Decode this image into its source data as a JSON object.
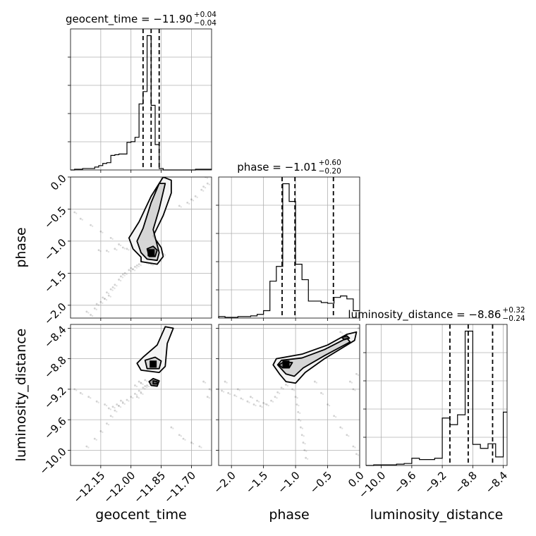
{
  "chart_data": {
    "type": "corner",
    "parameters": [
      {
        "name": "geocent_time",
        "label": "geocent_time",
        "title": {
          "main": "geocent_time = −11.90",
          "sup": "+0.04",
          "sub": "−0.04"
        },
        "range": [
          -12.3,
          -11.6
        ],
        "ticks": [
          -12.15,
          -12.0,
          -11.85,
          -11.7
        ],
        "tick_labels": [
          "−12.15",
          "−12.00",
          "−11.85",
          "−11.70"
        ],
        "quantiles": [
          -11.94,
          -11.9,
          -11.86
        ],
        "hist_bins": [
          -12.3,
          -12.28,
          -12.26,
          -12.24,
          -12.22,
          -12.2,
          -12.18,
          -12.16,
          -12.14,
          -12.12,
          -12.1,
          -12.08,
          -12.06,
          -12.04,
          -12.02,
          -12.0,
          -11.98,
          -11.96,
          -11.94,
          -11.92,
          -11.9,
          -11.88,
          -11.86,
          -11.84,
          -11.82,
          -11.8,
          -11.78,
          -11.76,
          -11.74,
          -11.72,
          -11.7,
          -11.68,
          -11.66,
          -11.64,
          -11.62,
          -11.6
        ],
        "hist_values": [
          0,
          0.1,
          0.1,
          0.2,
          0.2,
          0.2,
          0.4,
          0.6,
          0.9,
          1.0,
          2.0,
          2.1,
          2.2,
          2.2,
          3.8,
          3.9,
          4.5,
          9.1,
          10.8,
          18.5,
          8.9,
          3.5,
          0.2,
          0,
          0,
          0,
          0,
          0,
          0,
          0,
          0,
          0.1,
          0.1,
          0.1,
          0.1
        ]
      },
      {
        "name": "phase",
        "label": "phase",
        "title": {
          "main": "phase = −1.01",
          "sup": "+0.60",
          "sub": "−0.20"
        },
        "range": [
          -2.2,
          0.0
        ],
        "ticks": [
          -2.0,
          -1.5,
          -1.0,
          -0.5,
          0.0
        ],
        "tick_labels": [
          "−2.0",
          "−1.5",
          "−1.0",
          "−0.5",
          "0.0"
        ],
        "quantiles": [
          -1.21,
          -1.01,
          -0.41
        ],
        "hist_bins": [
          -2.2,
          -2.1,
          -2.0,
          -1.9,
          -1.8,
          -1.7,
          -1.6,
          -1.5,
          -1.4,
          -1.3,
          -1.2,
          -1.1,
          -1.0,
          -0.9,
          -0.8,
          -0.7,
          -0.6,
          -0.5,
          -0.4,
          -0.3,
          -0.2,
          -0.1,
          0.0
        ],
        "hist_values": [
          0.2,
          0.1,
          0.1,
          0.2,
          0.2,
          0.3,
          0.5,
          1.0,
          5.0,
          7.0,
          18.2,
          15.8,
          7.3,
          5.2,
          2.3,
          2.3,
          2.1,
          2.0,
          2.8,
          3.0,
          2.6,
          1.0
        ]
      },
      {
        "name": "luminosity_distance",
        "label": "luminosity_distance",
        "title": {
          "main": "luminosity_distance = −8.86",
          "sup": "+0.32",
          "sub": "−0.24"
        },
        "range": [
          -10.2,
          -8.35
        ],
        "ticks": [
          -10.0,
          -9.6,
          -9.2,
          -8.8,
          -8.4
        ],
        "tick_labels": [
          "−10.0",
          "−9.6",
          "−9.2",
          "−8.8",
          "−8.4"
        ],
        "quantiles": [
          -9.1,
          -8.86,
          -8.54
        ],
        "hist_bins": [
          -10.2,
          -10.1,
          -10.0,
          -9.9,
          -9.8,
          -9.7,
          -9.6,
          -9.5,
          -9.4,
          -9.3,
          -9.2,
          -9.1,
          -9.0,
          -8.9,
          -8.8,
          -8.7,
          -8.6,
          -8.5,
          -8.4,
          -8.35
        ],
        "hist_values": [
          0,
          0.1,
          0.1,
          0.1,
          0.2,
          0.3,
          1.1,
          0.9,
          0.9,
          1.1,
          7.2,
          6.2,
          7.7,
          20.4,
          3.2,
          2.6,
          3.3,
          1.3,
          8.1
        ]
      }
    ],
    "pairs": [
      {
        "x": "geocent_time",
        "y": "phase",
        "peak": [
          -11.9,
          -1.18
        ],
        "contours": [
          [
            [
              -11.95,
              -1.32
            ],
            [
              -11.87,
              -1.36
            ],
            [
              -11.84,
              -1.24
            ],
            [
              -11.85,
              -1.1
            ],
            [
              -11.89,
              -0.92
            ],
            [
              -11.84,
              -0.6
            ],
            [
              -11.8,
              -0.25
            ],
            [
              -11.8,
              -0.05
            ],
            [
              -11.84,
              0.0
            ],
            [
              -11.9,
              -0.3
            ],
            [
              -11.96,
              -0.7
            ],
            [
              -12.01,
              -0.95
            ],
            [
              -11.99,
              -1.12
            ],
            [
              -11.95,
              -1.25
            ]
          ],
          [
            [
              -11.92,
              -1.28
            ],
            [
              -11.87,
              -1.3
            ],
            [
              -11.86,
              -1.18
            ],
            [
              -11.87,
              -1.06
            ],
            [
              -11.89,
              -0.82
            ],
            [
              -11.86,
              -0.5
            ],
            [
              -11.83,
              -0.1
            ],
            [
              -11.86,
              -0.1
            ],
            [
              -11.9,
              -0.4
            ],
            [
              -11.94,
              -0.8
            ],
            [
              -11.97,
              -1.0
            ],
            [
              -11.95,
              -1.18
            ]
          ],
          [
            [
              -11.91,
              -1.24
            ],
            [
              -11.88,
              -1.24
            ],
            [
              -11.87,
              -1.14
            ],
            [
              -11.89,
              -1.08
            ],
            [
              -11.92,
              -1.12
            ]
          ]
        ],
        "scatter": [
          [
            -12.22,
            -2.1
          ],
          [
            -12.18,
            -2.05
          ],
          [
            -12.17,
            -1.98
          ],
          [
            -12.13,
            -1.9
          ],
          [
            -12.12,
            -1.8
          ],
          [
            -12.1,
            -1.75
          ],
          [
            -12.08,
            -1.68
          ],
          [
            -12.06,
            -1.6
          ],
          [
            -12.05,
            -1.55
          ],
          [
            -12.03,
            -1.5
          ],
          [
            -12.01,
            -1.45
          ],
          [
            -12.0,
            -1.42
          ],
          [
            -11.98,
            -1.4
          ],
          [
            -11.97,
            -1.38
          ],
          [
            -11.96,
            -1.36
          ],
          [
            -12.15,
            -1.95
          ],
          [
            -12.11,
            -1.85
          ],
          [
            -12.09,
            -1.72
          ],
          [
            -12.04,
            -1.52
          ],
          [
            -11.99,
            -1.44
          ],
          [
            -12.2,
            -2.15
          ],
          [
            -12.14,
            -1.88
          ],
          [
            -12.28,
            -0.55
          ],
          [
            -12.25,
            -0.65
          ],
          [
            -12.2,
            -0.75
          ],
          [
            -12.15,
            -0.85
          ],
          [
            -12.1,
            -0.95
          ],
          [
            -12.06,
            -1.05
          ],
          [
            -12.04,
            -1.1
          ],
          [
            -12.08,
            -1.12
          ],
          [
            -12.12,
            -1.15
          ],
          [
            -12.16,
            -1.14
          ],
          [
            -12.02,
            -1.12
          ],
          [
            -11.72,
            -0.4
          ],
          [
            -11.68,
            -0.3
          ],
          [
            -11.65,
            -0.2
          ],
          [
            -11.63,
            0.0
          ],
          [
            -11.62,
            -0.1
          ],
          [
            -11.76,
            -0.45
          ],
          [
            -11.7,
            -0.35
          ],
          [
            -11.64,
            -0.15
          ],
          [
            -11.92,
            -1.34
          ],
          [
            -11.9,
            -1.36
          ],
          [
            -11.86,
            -1.3
          ],
          [
            -11.84,
            -1.2
          ],
          [
            -11.88,
            -1.32
          ]
        ]
      },
      {
        "x": "geocent_time",
        "y": "luminosity_distance",
        "peak": [
          -11.89,
          -8.87
        ],
        "contours": [
          [
            [
              -11.95,
              -8.95
            ],
            [
              -11.86,
              -8.98
            ],
            [
              -11.83,
              -8.9
            ],
            [
              -11.82,
              -8.6
            ],
            [
              -11.79,
              -8.4
            ],
            [
              -11.83,
              -8.38
            ],
            [
              -11.87,
              -8.62
            ],
            [
              -11.94,
              -8.78
            ],
            [
              -11.97,
              -8.86
            ]
          ],
          [
            [
              -11.92,
              -8.93
            ],
            [
              -11.86,
              -8.93
            ],
            [
              -11.85,
              -8.83
            ],
            [
              -11.88,
              -8.78
            ],
            [
              -11.93,
              -8.82
            ]
          ],
          [
            [
              -11.9,
              -9.15
            ],
            [
              -11.87,
              -9.16
            ],
            [
              -11.86,
              -9.09
            ],
            [
              -11.89,
              -9.06
            ],
            [
              -11.91,
              -9.1
            ]
          ],
          [
            [
              -11.89,
              -9.13
            ],
            [
              -11.87,
              -9.13
            ],
            [
              -11.87,
              -9.1
            ],
            [
              -11.89,
              -9.09
            ]
          ]
        ],
        "scatter": [
          [
            -12.22,
            -9.95
          ],
          [
            -12.18,
            -9.85
          ],
          [
            -12.15,
            -9.75
          ],
          [
            -12.12,
            -9.65
          ],
          [
            -12.1,
            -9.55
          ],
          [
            -12.08,
            -9.48
          ],
          [
            -12.06,
            -9.42
          ],
          [
            -12.04,
            -9.38
          ],
          [
            -12.02,
            -9.34
          ],
          [
            -12.0,
            -9.3
          ],
          [
            -11.98,
            -9.26
          ],
          [
            -11.96,
            -9.22
          ],
          [
            -11.94,
            -9.18
          ],
          [
            -11.92,
            -9.15
          ],
          [
            -12.28,
            -9.2
          ],
          [
            -12.25,
            -9.25
          ],
          [
            -12.21,
            -9.3
          ],
          [
            -12.17,
            -9.36
          ],
          [
            -12.13,
            -9.4
          ],
          [
            -12.09,
            -9.43
          ],
          [
            -12.07,
            -9.4
          ],
          [
            -12.11,
            -9.45
          ],
          [
            -12.05,
            -9.35
          ],
          [
            -11.96,
            -9.1
          ],
          [
            -11.93,
            -9.08
          ],
          [
            -11.98,
            -9.15
          ],
          [
            -11.95,
            -9.25
          ],
          [
            -11.97,
            -9.3
          ],
          [
            -11.8,
            -9.7
          ],
          [
            -11.76,
            -9.8
          ],
          [
            -11.74,
            -9.85
          ],
          [
            -11.7,
            -9.9
          ],
          [
            -11.66,
            -9.95
          ],
          [
            -11.62,
            -9.3
          ],
          [
            -11.64,
            -9.1
          ],
          [
            -11.61,
            -9.2
          ],
          [
            -11.95,
            -9.12
          ],
          [
            -11.93,
            -9.16
          ],
          [
            -11.91,
            -9.1
          ]
        ]
      },
      {
        "x": "phase",
        "y": "luminosity_distance",
        "peak": [
          -1.15,
          -8.87
        ],
        "contours": [
          [
            [
              -1.35,
              -8.88
            ],
            [
              -1.3,
              -8.8
            ],
            [
              -0.9,
              -8.74
            ],
            [
              -0.5,
              -8.62
            ],
            [
              -0.2,
              -8.48
            ],
            [
              -0.05,
              -8.45
            ],
            [
              -0.08,
              -8.56
            ],
            [
              -0.55,
              -8.8
            ],
            [
              -0.85,
              -8.98
            ],
            [
              -1.0,
              -9.12
            ],
            [
              -1.15,
              -9.1
            ],
            [
              -1.25,
              -9.0
            ]
          ],
          [
            [
              -1.28,
              -8.88
            ],
            [
              -1.22,
              -8.82
            ],
            [
              -0.9,
              -8.79
            ],
            [
              -0.55,
              -8.68
            ],
            [
              -0.2,
              -8.53
            ],
            [
              -0.15,
              -8.58
            ],
            [
              -0.55,
              -8.76
            ],
            [
              -0.88,
              -8.92
            ],
            [
              -1.02,
              -9.03
            ],
            [
              -1.15,
              -9.0
            ]
          ],
          [
            [
              -1.26,
              -8.88
            ],
            [
              -1.18,
              -8.84
            ],
            [
              -1.05,
              -8.85
            ],
            [
              -1.1,
              -8.92
            ],
            [
              -1.2,
              -8.92
            ]
          ],
          [
            [
              -0.28,
              -8.52
            ],
            [
              -0.2,
              -8.5
            ],
            [
              -0.16,
              -8.53
            ],
            [
              -0.24,
              -8.55
            ]
          ]
        ],
        "scatter": [
          [
            -2.15,
            -9.22
          ],
          [
            -2.05,
            -9.25
          ],
          [
            -1.95,
            -9.28
          ],
          [
            -1.85,
            -9.32
          ],
          [
            -1.75,
            -9.36
          ],
          [
            -1.65,
            -9.4
          ],
          [
            -1.55,
            -9.42
          ],
          [
            -1.45,
            -9.4
          ],
          [
            -1.38,
            -9.35
          ],
          [
            -1.32,
            -9.3
          ],
          [
            -1.28,
            -9.24
          ],
          [
            -1.22,
            -9.18
          ],
          [
            -1.15,
            -9.14
          ],
          [
            -2.1,
            -9.1
          ],
          [
            -1.9,
            -9.2
          ],
          [
            -1.7,
            -9.3
          ],
          [
            -1.6,
            -9.35
          ],
          [
            -1.5,
            -9.38
          ],
          [
            -1.05,
            -9.2
          ],
          [
            -1.0,
            -9.3
          ],
          [
            -0.98,
            -9.4
          ],
          [
            -0.96,
            -9.5
          ],
          [
            -0.95,
            -9.6
          ],
          [
            -0.92,
            -9.7
          ],
          [
            -0.9,
            -9.8
          ],
          [
            -0.88,
            -9.9
          ],
          [
            -0.86,
            -10.0
          ],
          [
            -0.84,
            -10.1
          ],
          [
            -0.7,
            -9.1
          ],
          [
            -0.6,
            -9.25
          ],
          [
            -0.5,
            -9.4
          ],
          [
            -0.4,
            -9.55
          ],
          [
            -0.3,
            -9.7
          ],
          [
            -0.2,
            -9.8
          ],
          [
            -0.1,
            -9.95
          ],
          [
            -0.05,
            -10.05
          ],
          [
            -0.15,
            -9.1
          ],
          [
            -0.1,
            -9.2
          ],
          [
            -0.05,
            -9.0
          ],
          [
            -0.02,
            -8.4
          ],
          [
            -0.3,
            -8.45
          ],
          [
            -0.6,
            -8.7
          ],
          [
            -0.8,
            -8.88
          ]
        ]
      }
    ]
  }
}
